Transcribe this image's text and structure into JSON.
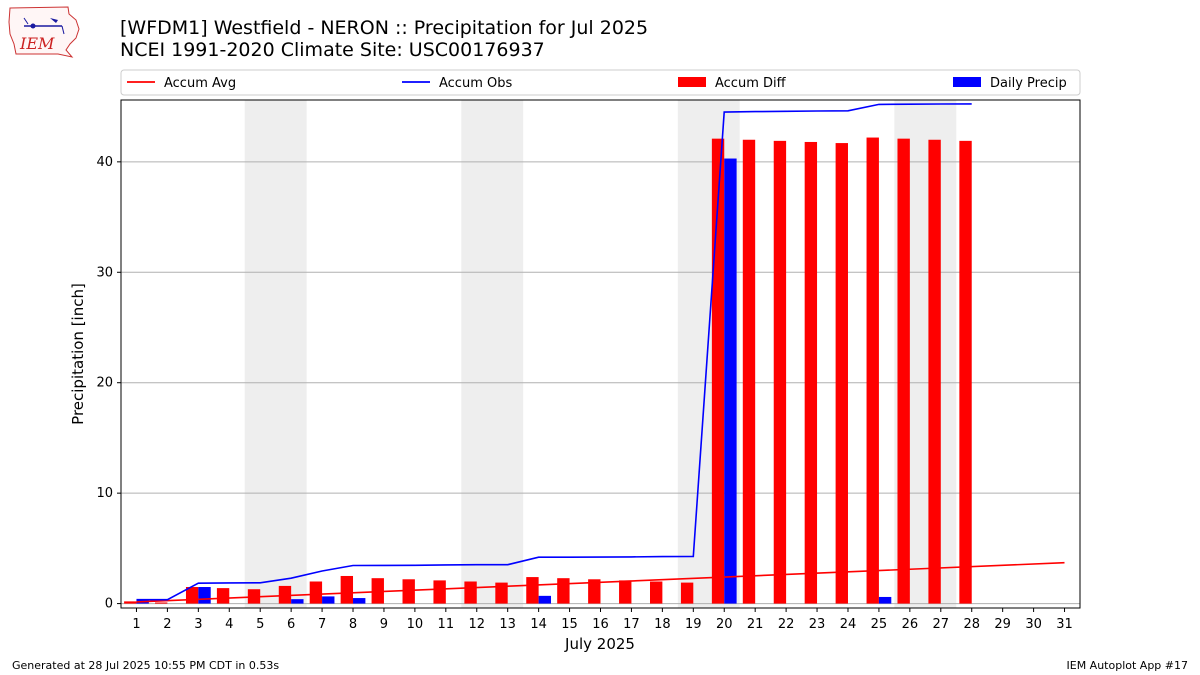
{
  "header": {
    "title": "[WFDM1] Westfield - NERON :: Precipitation for Jul 2025",
    "subtitle": "NCEI 1991-2020 Climate Site: USC00176937",
    "logo_text": "IEM"
  },
  "footer": {
    "left": "Generated at 28 Jul 2025 10:55 PM CDT in 0.53s",
    "right": "IEM Autoplot App #17"
  },
  "colors": {
    "avg": "#ff0000",
    "obs": "#0000ff",
    "diff": "#ff0000",
    "daily": "#0000ff",
    "weekend": "#eeeeee",
    "grid": "#b0b0b0"
  },
  "chart_data": {
    "type": "bar",
    "xlabel": "July 2025",
    "ylabel": "Precipitation [inch]",
    "xlim": [
      0.5,
      31.5
    ],
    "ylim": [
      -0.4,
      45.6
    ],
    "yticks": [
      0,
      10,
      20,
      30,
      40
    ],
    "grid": "y",
    "legend_placement": "top, above plot",
    "days": [
      1,
      2,
      3,
      4,
      5,
      6,
      7,
      8,
      9,
      10,
      11,
      12,
      13,
      14,
      15,
      16,
      17,
      18,
      19,
      20,
      21,
      22,
      23,
      24,
      25,
      26,
      27,
      28,
      29,
      30,
      31
    ],
    "weekends": [
      5,
      6,
      12,
      13,
      19,
      20,
      26,
      27
    ],
    "series": [
      {
        "name": "Accum Avg",
        "type": "line",
        "x": [
          1,
          31
        ],
        "values": [
          0.15,
          3.7
        ]
      },
      {
        "name": "Accum Obs",
        "type": "line",
        "x": [
          1,
          2,
          3,
          4,
          5,
          6,
          7,
          8,
          9,
          10,
          11,
          12,
          13,
          14,
          15,
          16,
          17,
          18,
          19,
          20,
          21,
          22,
          23,
          24,
          25,
          26,
          27,
          28
        ],
        "values": [
          0.35,
          0.35,
          1.85,
          1.87,
          1.88,
          2.3,
          2.95,
          3.45,
          3.46,
          3.47,
          3.5,
          3.52,
          3.52,
          4.2,
          4.2,
          4.21,
          4.23,
          4.25,
          4.26,
          44.5,
          44.55,
          44.58,
          44.6,
          44.62,
          45.2,
          45.22,
          45.24,
          45.25
        ]
      },
      {
        "name": "Accum Diff",
        "type": "bar",
        "x": [
          1,
          2,
          3,
          4,
          5,
          6,
          7,
          8,
          9,
          10,
          11,
          12,
          13,
          14,
          15,
          16,
          17,
          18,
          19,
          20,
          21,
          22,
          23,
          24,
          25,
          26,
          27,
          28
        ],
        "values": [
          0.2,
          0.1,
          1.5,
          1.4,
          1.3,
          1.6,
          2.0,
          2.5,
          2.3,
          2.2,
          2.1,
          2.0,
          1.9,
          2.4,
          2.3,
          2.2,
          2.1,
          2.0,
          1.9,
          42.1,
          42.0,
          41.9,
          41.8,
          41.7,
          42.2,
          42.1,
          42.0,
          41.9
        ]
      },
      {
        "name": "Daily Precip",
        "type": "bar",
        "x": [
          1,
          2,
          3,
          4,
          5,
          6,
          7,
          8,
          9,
          10,
          11,
          12,
          13,
          14,
          15,
          16,
          17,
          18,
          19,
          20,
          21,
          22,
          23,
          24,
          25,
          26,
          27,
          28
        ],
        "values": [
          0.4,
          0,
          1.5,
          0,
          0,
          0.4,
          0.65,
          0.5,
          0,
          0,
          0,
          0,
          0,
          0.7,
          0,
          0,
          0,
          0,
          0,
          40.3,
          0,
          0,
          0,
          0,
          0.6,
          0,
          0,
          0
        ]
      }
    ]
  }
}
